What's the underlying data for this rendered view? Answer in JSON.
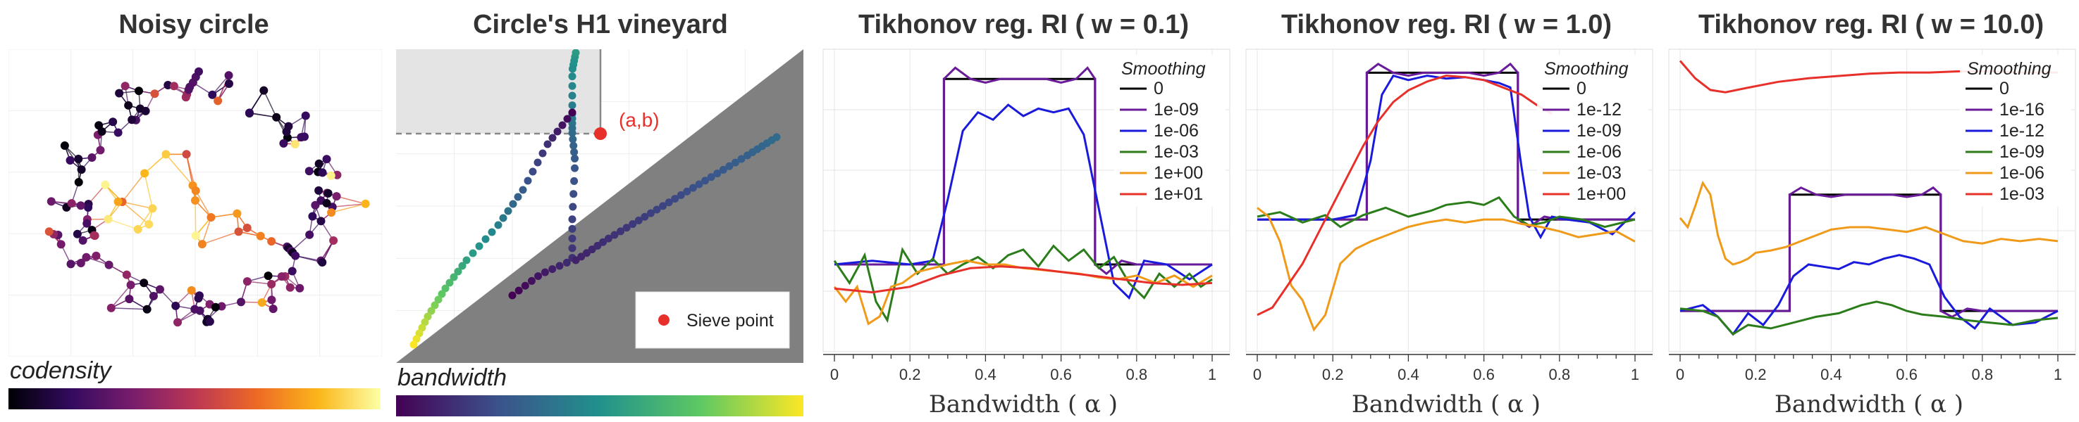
{
  "panels": [
    {
      "title": "Noisy circle",
      "colorbar_label": "codensity"
    },
    {
      "title": "Circle's H1 vineyard",
      "colorbar_label": "bandwidth",
      "point_label": "(a,b)",
      "legend": "Sieve point"
    }
  ],
  "colors": {
    "codensity_colormap": [
      "#000004",
      "#320a5e",
      "#781c6d",
      "#bc3754",
      "#ed6925",
      "#fbb61a",
      "#fcffa4"
    ],
    "bandwidth_colormap": [
      "#440154",
      "#3b528b",
      "#21918c",
      "#5ec962",
      "#fde725"
    ],
    "sieve_point": "#e8302a",
    "diagonal_shade": "#808080",
    "box_shade": "#e4e4e4"
  },
  "chart_data": [
    {
      "type": "line",
      "title": "Tikhonov reg. RI ( w = 0.1)",
      "xlabel": "Bandwidth ( α )",
      "xlim": [
        0,
        1
      ],
      "xticks": [
        "0",
        "0.2",
        "0.4",
        "0.6",
        "0.8",
        "1"
      ],
      "legend_title": "Smoothing",
      "legend_position": "top-right",
      "series": [
        {
          "name": "0",
          "color": "#000000",
          "x": [
            0,
            0.29,
            0.29,
            0.69,
            0.69,
            1
          ],
          "y": [
            0,
            0,
            1,
            1,
            0,
            0
          ]
        },
        {
          "name": "1e-09",
          "color": "#6a1b9a",
          "x": [
            0,
            0.29,
            0.29,
            0.32,
            0.36,
            0.4,
            0.44,
            0.5,
            0.56,
            0.6,
            0.64,
            0.67,
            0.69,
            0.69,
            0.72,
            0.76,
            0.8,
            1
          ],
          "y": [
            0,
            0,
            1,
            1.06,
            1,
            0.98,
            1,
            1,
            1,
            0.98,
            1,
            1.06,
            1,
            0,
            -0.05,
            0.02,
            0,
            0
          ]
        },
        {
          "name": "1e-06",
          "color": "#1a1adc",
          "x": [
            0,
            0.1,
            0.2,
            0.26,
            0.3,
            0.34,
            0.38,
            0.42,
            0.46,
            0.5,
            0.54,
            0.58,
            0.62,
            0.66,
            0.7,
            0.74,
            0.78,
            0.82,
            0.88,
            0.94,
            1
          ],
          "y": [
            0,
            0.02,
            0,
            0.02,
            0.35,
            0.72,
            0.82,
            0.78,
            0.86,
            0.8,
            0.84,
            0.82,
            0.84,
            0.7,
            0.3,
            -0.1,
            -0.18,
            0.02,
            0,
            -0.08,
            0
          ]
        },
        {
          "name": "1e-03",
          "color": "#2b7d1a",
          "x": [
            0,
            0.04,
            0.08,
            0.11,
            0.14,
            0.18,
            0.22,
            0.26,
            0.3,
            0.34,
            0.38,
            0.42,
            0.46,
            0.5,
            0.54,
            0.58,
            0.62,
            0.66,
            0.7,
            0.74,
            0.78,
            0.82,
            0.86,
            0.9,
            0.94,
            0.97,
            1
          ],
          "y": [
            0.02,
            -0.1,
            0.05,
            -0.2,
            -0.3,
            0.08,
            -0.05,
            0.03,
            -0.05,
            0,
            0.04,
            -0.02,
            0.05,
            0.08,
            -0.01,
            0.1,
            0.02,
            0.08,
            -0.02,
            0.04,
            -0.1,
            -0.18,
            -0.05,
            -0.12,
            -0.05,
            -0.12,
            -0.08
          ]
        },
        {
          "name": "1e+00",
          "color": "#f09a1a",
          "x": [
            0,
            0.03,
            0.06,
            0.09,
            0.12,
            0.15,
            0.18,
            0.22,
            0.26,
            0.3,
            0.35,
            0.4,
            0.45,
            0.5,
            0.55,
            0.6,
            0.65,
            0.7,
            0.75,
            0.8,
            0.85,
            0.9,
            0.95,
            1
          ],
          "y": [
            -0.12,
            -0.2,
            -0.12,
            -0.32,
            -0.28,
            -0.12,
            -0.1,
            -0.04,
            -0.02,
            0,
            0.02,
            0,
            0,
            -0.02,
            -0.03,
            -0.04,
            -0.05,
            -0.07,
            -0.08,
            -0.06,
            -0.1,
            -0.06,
            -0.12,
            -0.06
          ]
        },
        {
          "name": "1e+01",
          "color": "#e8302a",
          "x": [
            0,
            0.1,
            0.2,
            0.28,
            0.36,
            0.44,
            0.52,
            0.6,
            0.68,
            0.76,
            0.84,
            0.92,
            1
          ],
          "y": [
            -0.13,
            -0.15,
            -0.12,
            -0.06,
            -0.02,
            -0.01,
            -0.02,
            -0.04,
            -0.06,
            -0.08,
            -0.1,
            -0.11,
            -0.1
          ]
        }
      ]
    },
    {
      "type": "line",
      "title": "Tikhonov reg. RI ( w = 1.0)",
      "xlabel": "Bandwidth ( α )",
      "xlim": [
        0,
        1
      ],
      "xticks": [
        "0",
        "0.2",
        "0.4",
        "0.6",
        "0.8",
        "1"
      ],
      "legend_title": "Smoothing",
      "legend_position": "top-right",
      "series": [
        {
          "name": "0",
          "color": "#000000",
          "x": [
            0,
            0.29,
            0.29,
            0.69,
            0.69,
            1
          ],
          "y": [
            0,
            0,
            1,
            1,
            0,
            0
          ]
        },
        {
          "name": "1e-12",
          "color": "#6a1b9a",
          "x": [
            0,
            0.29,
            0.29,
            0.32,
            0.36,
            0.4,
            0.44,
            0.5,
            0.56,
            0.6,
            0.64,
            0.67,
            0.69,
            0.69,
            0.72,
            0.76,
            0.8,
            1
          ],
          "y": [
            0,
            0,
            1,
            1.06,
            1,
            0.98,
            1,
            1,
            1,
            0.98,
            1,
            1.06,
            1,
            0,
            -0.05,
            0.02,
            0,
            0
          ]
        },
        {
          "name": "1e-09",
          "color": "#1a1adc",
          "x": [
            0,
            0.1,
            0.2,
            0.26,
            0.3,
            0.33,
            0.36,
            0.4,
            0.45,
            0.5,
            0.55,
            0.6,
            0.64,
            0.67,
            0.7,
            0.72,
            0.75,
            0.78,
            0.82,
            0.88,
            0.94,
            1
          ],
          "y": [
            0,
            0,
            0,
            0.03,
            0.4,
            0.85,
            0.98,
            0.95,
            0.98,
            0.96,
            0.97,
            0.95,
            0.93,
            0.9,
            0.35,
            0.02,
            -0.12,
            0.02,
            0,
            -0.02,
            -0.1,
            0.05
          ]
        },
        {
          "name": "1e-06",
          "color": "#2b7d1a",
          "x": [
            0,
            0.06,
            0.12,
            0.18,
            0.22,
            0.28,
            0.34,
            0.4,
            0.46,
            0.5,
            0.56,
            0.6,
            0.64,
            0.68,
            0.72,
            0.76,
            0.8,
            0.86,
            0.92,
            1
          ],
          "y": [
            0.02,
            0.05,
            -0.02,
            0.03,
            -0.05,
            0.03,
            0.08,
            0.02,
            0.06,
            0.1,
            0.12,
            0.1,
            0.15,
            0.02,
            -0.04,
            -0.02,
            0.02,
            0,
            -0.05,
            0
          ]
        },
        {
          "name": "1e-03",
          "color": "#f09a1a",
          "x": [
            0,
            0.03,
            0.06,
            0.09,
            0.12,
            0.15,
            0.18,
            0.22,
            0.26,
            0.3,
            0.35,
            0.4,
            0.45,
            0.5,
            0.55,
            0.6,
            0.65,
            0.7,
            0.75,
            0.8,
            0.85,
            0.9,
            0.95,
            1
          ],
          "y": [
            0.08,
            0.02,
            -0.15,
            -0.45,
            -0.55,
            -0.75,
            -0.65,
            -0.3,
            -0.2,
            -0.15,
            -0.1,
            -0.05,
            -0.02,
            0,
            -0.02,
            0,
            0,
            -0.03,
            -0.05,
            -0.08,
            -0.12,
            -0.1,
            -0.08,
            -0.15
          ]
        },
        {
          "name": "1e+00",
          "color": "#e8302a",
          "x": [
            0,
            0.04,
            0.08,
            0.12,
            0.16,
            0.2,
            0.24,
            0.28,
            0.32,
            0.36,
            0.4,
            0.45,
            0.5,
            0.55,
            0.6,
            0.65,
            0.7,
            0.74,
            0.78
          ],
          "y": [
            -0.65,
            -0.6,
            -0.45,
            -0.3,
            -0.1,
            0.1,
            0.3,
            0.5,
            0.67,
            0.8,
            0.88,
            0.94,
            0.98,
            0.97,
            0.95,
            0.9,
            0.85,
            0.78,
            0.72
          ]
        }
      ]
    },
    {
      "type": "line",
      "title": "Tikhonov reg. RI ( w = 10.0)",
      "xlabel": "Bandwidth ( α )",
      "xlim": [
        0,
        1
      ],
      "xticks": [
        "0",
        "0.2",
        "0.4",
        "0.6",
        "0.8",
        "1"
      ],
      "legend_title": "Smoothing",
      "legend_position": "top-right",
      "series": [
        {
          "name": "0",
          "color": "#000000",
          "x": [
            0,
            0.29,
            0.29,
            0.69,
            0.69,
            1
          ],
          "y": [
            0,
            0,
            1,
            1,
            0,
            0
          ]
        },
        {
          "name": "1e-16",
          "color": "#6a1b9a",
          "x": [
            0,
            0.29,
            0.29,
            0.32,
            0.36,
            0.4,
            0.44,
            0.5,
            0.56,
            0.6,
            0.64,
            0.67,
            0.69,
            0.69,
            0.72,
            0.76,
            0.8,
            1
          ],
          "y": [
            0,
            0,
            1,
            1.06,
            1,
            0.98,
            1,
            1,
            1,
            0.98,
            1,
            1.06,
            1,
            0,
            -0.05,
            0.02,
            0,
            0
          ]
        },
        {
          "name": "1e-12",
          "color": "#1a1adc",
          "x": [
            0,
            0.06,
            0.1,
            0.14,
            0.18,
            0.22,
            0.26,
            0.3,
            0.34,
            0.38,
            0.42,
            0.46,
            0.5,
            0.54,
            0.58,
            0.62,
            0.66,
            0.7,
            0.74,
            0.78,
            0.82,
            0.88,
            0.94,
            1
          ],
          "y": [
            0,
            0.05,
            -0.05,
            -0.2,
            -0.02,
            -0.12,
            0.05,
            0.3,
            0.4,
            0.38,
            0.36,
            0.42,
            0.4,
            0.45,
            0.48,
            0.45,
            0.4,
            0.12,
            -0.05,
            -0.15,
            0.02,
            -0.12,
            -0.1,
            0
          ]
        },
        {
          "name": "1e-09",
          "color": "#2b7d1a",
          "x": [
            0,
            0.06,
            0.1,
            0.14,
            0.18,
            0.24,
            0.3,
            0.36,
            0.42,
            0.48,
            0.52,
            0.56,
            0.6,
            0.64,
            0.7,
            0.76,
            0.82,
            0.88,
            0.94,
            1
          ],
          "y": [
            0.02,
            0,
            -0.05,
            -0.2,
            -0.12,
            -0.15,
            -0.1,
            -0.05,
            -0.02,
            0.05,
            0.08,
            0.05,
            0,
            -0.03,
            -0.05,
            -0.08,
            -0.1,
            -0.12,
            -0.08,
            -0.06
          ]
        },
        {
          "name": "1e-06",
          "color": "#f09a1a",
          "x": [
            0,
            0.02,
            0.04,
            0.06,
            0.08,
            0.1,
            0.12,
            0.14,
            0.16,
            0.18,
            0.2,
            0.24,
            0.28,
            0.32,
            0.36,
            0.4,
            0.45,
            0.5,
            0.55,
            0.6,
            0.65,
            0.7,
            0.75,
            0.8,
            0.85,
            0.9,
            0.95,
            1
          ],
          "y": [
            0.8,
            0.72,
            0.9,
            1.1,
            1.0,
            0.65,
            0.45,
            0.4,
            0.42,
            0.45,
            0.5,
            0.52,
            0.55,
            0.6,
            0.65,
            0.7,
            0.72,
            0.72,
            0.7,
            0.68,
            0.72,
            0.66,
            0.6,
            0.58,
            0.62,
            0.6,
            0.62,
            0.6
          ]
        },
        {
          "name": "1e-03",
          "color": "#e8302a",
          "x": [
            0,
            0.04,
            0.08,
            0.12,
            0.18,
            0.26,
            0.34,
            0.42,
            0.5,
            0.58,
            0.66,
            0.74,
            0.82,
            0.9,
            1
          ],
          "y": [
            2.15,
            2.0,
            1.9,
            1.88,
            1.92,
            1.97,
            2.0,
            2.02,
            2.04,
            2.05,
            2.05,
            2.06,
            2.06,
            2.05,
            2.05
          ]
        }
      ]
    }
  ]
}
